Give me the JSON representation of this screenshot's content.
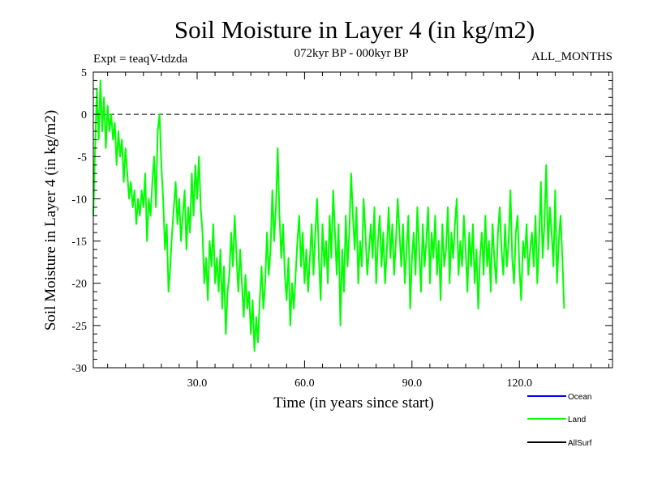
{
  "chart_data": {
    "type": "line",
    "title": "Soil Moisture in Layer 4 (in kg/m2)",
    "subtitle_left": "Expt = teaqV-tdzda",
    "subtitle_center": "072kyr BP - 000kyr BP",
    "subtitle_right": "ALL_MONTHS",
    "xlabel": "Time (in years since start)",
    "ylabel": "Soil Moisture in Layer 4 (in kg/m2)",
    "xlim": [
      1,
      146
    ],
    "ylim": [
      -30,
      5
    ],
    "x_ticks": [
      30,
      60,
      90,
      120
    ],
    "x_tick_labels": [
      "30.0",
      "60.0",
      "90.0",
      "120.0"
    ],
    "y_ticks": [
      5,
      0,
      -5,
      -10,
      -15,
      -20,
      -25,
      -30
    ],
    "y_tick_labels": [
      "5",
      "0",
      "-5",
      "-10",
      "-15",
      "-20",
      "-25",
      "-30"
    ],
    "reference_line": 0,
    "legend": [
      {
        "name": "Ocean",
        "color": "#0000ff"
      },
      {
        "name": "Land",
        "color": "#00ff00"
      },
      {
        "name": "AllSurf",
        "color": "#000000"
      }
    ],
    "series": [
      {
        "name": "Land",
        "color": "#00ff00",
        "x_start": 1,
        "x_step": 0.5,
        "values": [
          -12,
          -4,
          3,
          -3,
          4,
          -2,
          2,
          -4,
          1,
          -2,
          0,
          -3,
          -1,
          -6,
          -2,
          -5,
          -3,
          -8,
          -4,
          -7,
          -10,
          -8,
          -11,
          -9,
          -13,
          -10,
          -12,
          -9,
          -11,
          -7,
          -15,
          -10,
          -12,
          -8,
          -5,
          -11,
          -2,
          0,
          -6,
          -10,
          -16,
          -13,
          -21,
          -18,
          -14,
          -11,
          -8,
          -13,
          -10,
          -15,
          -12,
          -9,
          -16,
          -11,
          -14,
          -7,
          -12,
          -6,
          -10,
          -5,
          -11,
          -14,
          -20,
          -17,
          -22,
          -15,
          -18,
          -13,
          -20,
          -17,
          -21,
          -16,
          -23,
          -18,
          -26,
          -21,
          -19,
          -14,
          -18,
          -12,
          -17,
          -21,
          -16,
          -20,
          -24,
          -19,
          -23,
          -21,
          -26,
          -22,
          -28,
          -24,
          -27,
          -22,
          -18,
          -23,
          -20,
          -14,
          -19,
          -16,
          -9,
          -15,
          -11,
          -4,
          -12,
          -17,
          -13,
          -19,
          -22,
          -17,
          -25,
          -20,
          -23,
          -19,
          -15,
          -12,
          -18,
          -14,
          -20,
          -16,
          -21,
          -17,
          -13,
          -19,
          -14,
          -10,
          -17,
          -22,
          -13,
          -18,
          -15,
          -20,
          -12,
          -17,
          -9,
          -14,
          -19,
          -13,
          -25,
          -16,
          -21,
          -12,
          -18,
          -14,
          -7,
          -12,
          -16,
          -11,
          -20,
          -15,
          -18,
          -10,
          -14,
          -19,
          -16,
          -13,
          -17,
          -11,
          -20,
          -15,
          -12,
          -18,
          -14,
          -20,
          -16,
          -11,
          -17,
          -13,
          -19,
          -15,
          -10,
          -14,
          -18,
          -13,
          -20,
          -16,
          -12,
          -23,
          -17,
          -14,
          -19,
          -11,
          -16,
          -21,
          -13,
          -18,
          -15,
          -11,
          -20,
          -14,
          -17,
          -12,
          -19,
          -15,
          -22,
          -13,
          -18,
          -16,
          -11,
          -20,
          -14,
          -17,
          -13,
          -10,
          -19,
          -15,
          -18,
          -12,
          -16,
          -21,
          -14,
          -18,
          -13,
          -20,
          -16,
          -23,
          -17,
          -14,
          -19,
          -12,
          -18,
          -15,
          -21,
          -13,
          -17,
          -20,
          -14,
          -11,
          -16,
          -19,
          -13,
          -18,
          -15,
          -9,
          -17,
          -20,
          -14,
          -12,
          -18,
          -22,
          -15,
          -17,
          -13,
          -19,
          -16,
          -14,
          -18,
          -12,
          -20,
          -15,
          -8,
          -17,
          -13,
          -6,
          -16,
          -11,
          -14,
          -18,
          -9,
          -20,
          -15,
          -12,
          -17,
          -23
        ]
      }
    ]
  }
}
